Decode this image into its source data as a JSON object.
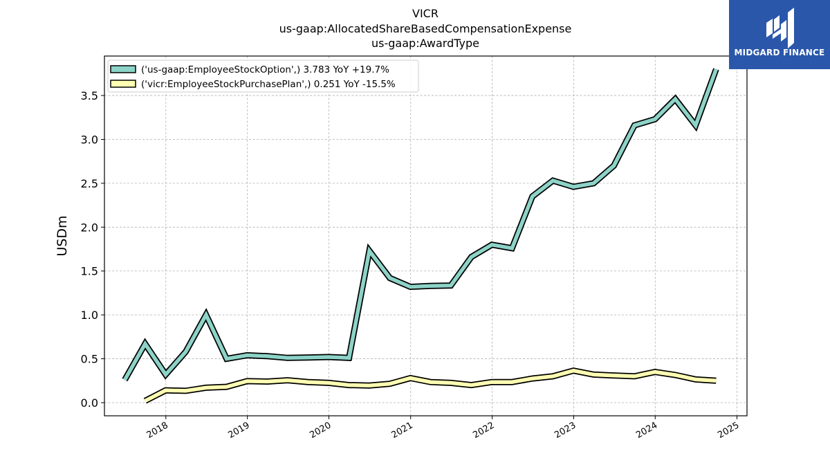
{
  "chart_data": {
    "type": "line",
    "title_lines": [
      "VICR",
      "us-gaap:AllocatedShareBasedCompensationExpense",
      "us-gaap:AwardType"
    ],
    "xlabel": "",
    "ylabel": "USDm",
    "xlim": [
      "2017-04-01",
      "2025-02-15"
    ],
    "ylim": [
      -0.15,
      3.95
    ],
    "x_ticks": [
      "2018",
      "2019",
      "2020",
      "2021",
      "2022",
      "2023",
      "2024",
      "2025"
    ],
    "y_ticks": [
      "0.0",
      "0.5",
      "1.0",
      "1.5",
      "2.0",
      "2.5",
      "3.0",
      "3.5"
    ],
    "grid": true,
    "legend_position": "top-left",
    "series": [
      {
        "name": "('us-gaap:EmployeeStockOption',) 3.783 YoY +19.7%",
        "color": "#8dd3c7",
        "points": [
          [
            "2017-07-01",
            0.26
          ],
          [
            "2017-09-30",
            0.67
          ],
          [
            "2017-12-31",
            0.32
          ],
          [
            "2018-03-31",
            0.58
          ],
          [
            "2018-06-30",
            1.0
          ],
          [
            "2018-09-30",
            0.5
          ],
          [
            "2018-12-31",
            0.54
          ],
          [
            "2019-03-31",
            0.53
          ],
          [
            "2019-06-30",
            0.51
          ],
          [
            "2019-09-30",
            0.515
          ],
          [
            "2019-12-31",
            0.52
          ],
          [
            "2020-03-31",
            0.51
          ],
          [
            "2020-06-30",
            1.73
          ],
          [
            "2020-09-30",
            1.42
          ],
          [
            "2020-12-31",
            1.32
          ],
          [
            "2021-03-31",
            1.33
          ],
          [
            "2021-06-30",
            1.335
          ],
          [
            "2021-09-30",
            1.66
          ],
          [
            "2021-12-31",
            1.8
          ],
          [
            "2022-03-31",
            1.76
          ],
          [
            "2022-06-30",
            2.35
          ],
          [
            "2022-09-30",
            2.53
          ],
          [
            "2022-12-31",
            2.46
          ],
          [
            "2023-03-31",
            2.5
          ],
          [
            "2023-06-30",
            2.7
          ],
          [
            "2023-09-30",
            3.16
          ],
          [
            "2023-12-31",
            3.23
          ],
          [
            "2024-03-31",
            3.46
          ],
          [
            "2024-06-30",
            3.16
          ],
          [
            "2024-09-30",
            3.8
          ]
        ]
      },
      {
        "name": "('vicr:EmployeeStockPurchasePlan',) 0.251 YoY -15.5%",
        "color": "#ffffb3",
        "points": [
          [
            "2017-09-30",
            0.02
          ],
          [
            "2017-12-31",
            0.14
          ],
          [
            "2018-03-31",
            0.135
          ],
          [
            "2018-06-30",
            0.17
          ],
          [
            "2018-09-30",
            0.18
          ],
          [
            "2018-12-31",
            0.245
          ],
          [
            "2019-03-31",
            0.24
          ],
          [
            "2019-06-30",
            0.255
          ],
          [
            "2019-09-30",
            0.235
          ],
          [
            "2019-12-31",
            0.225
          ],
          [
            "2020-03-31",
            0.2
          ],
          [
            "2020-06-30",
            0.195
          ],
          [
            "2020-09-30",
            0.215
          ],
          [
            "2020-12-31",
            0.28
          ],
          [
            "2021-03-31",
            0.235
          ],
          [
            "2021-06-30",
            0.225
          ],
          [
            "2021-09-30",
            0.2
          ],
          [
            "2021-12-31",
            0.235
          ],
          [
            "2022-03-31",
            0.235
          ],
          [
            "2022-06-30",
            0.275
          ],
          [
            "2022-09-30",
            0.3
          ],
          [
            "2022-12-31",
            0.365
          ],
          [
            "2023-03-31",
            0.32
          ],
          [
            "2023-06-30",
            0.31
          ],
          [
            "2023-09-30",
            0.3
          ],
          [
            "2023-12-31",
            0.35
          ],
          [
            "2024-03-31",
            0.315
          ],
          [
            "2024-06-30",
            0.265
          ],
          [
            "2024-09-30",
            0.25
          ]
        ]
      }
    ]
  },
  "logo": {
    "text": "MIDGARD FINANCE",
    "background": "#2a57aa"
  }
}
